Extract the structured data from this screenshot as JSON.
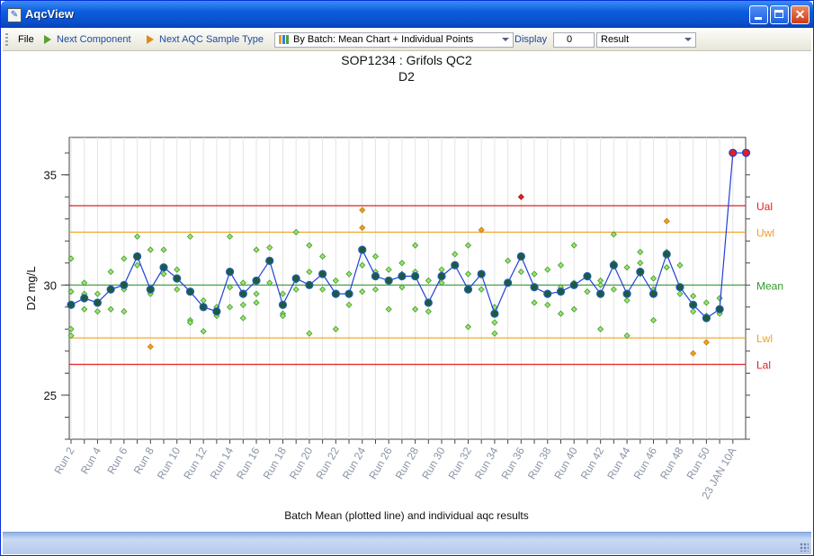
{
  "window": {
    "title": "AqcView"
  },
  "toolbar": {
    "file": "File",
    "next_component": "Next Component",
    "next_sample_type": "Next AQC Sample Type",
    "view_mode": "By Batch: Mean Chart + Individual Points",
    "display_label": "Display",
    "display_value": "0",
    "result_select": "Result"
  },
  "colors": {
    "control_limit": "#e02020",
    "warning_limit": "#f0a020",
    "mean_line": "#2e9a2e",
    "batch_mean_line": "#1f3fd9",
    "batch_mean_marker": "#1f5a40",
    "individual_point": "#9fe070",
    "outlier_warning": "#f0a020",
    "outlier_control": "#e02020",
    "latest_point": "#e02020"
  },
  "chart_data": {
    "type": "line",
    "title": "SOP1234 : Grifols QC2",
    "subtitle": "D2",
    "xlabel": "Batch Mean (plotted line) and individual aqc results",
    "ylabel": "D2 mg/L",
    "ylim": [
      23,
      36.7
    ],
    "yticks": [
      25,
      30,
      35
    ],
    "grid": true,
    "limits": [
      {
        "label": "Ual",
        "value": 33.6,
        "kind": "control"
      },
      {
        "label": "Uwl",
        "value": 32.4,
        "kind": "warning"
      },
      {
        "label": "Mean",
        "value": 30.0,
        "kind": "mean"
      },
      {
        "label": "Lwl",
        "value": 27.6,
        "kind": "warning"
      },
      {
        "label": "Lal",
        "value": 26.4,
        "kind": "control"
      }
    ],
    "categories": [
      "Run 2",
      "Run 4",
      "Run 6",
      "Run 8",
      "Run 10",
      "Run 12",
      "Run 14",
      "Run 16",
      "Run 18",
      "Run 20",
      "Run 22",
      "Run 24",
      "Run 26",
      "Run 28",
      "Run 30",
      "Run 32",
      "Run 34",
      "Run 36",
      "Run 38",
      "Run 40",
      "Run 42",
      "Run 44",
      "Run 46",
      "Run 48",
      "Run 50",
      "23 JAN 10A"
    ],
    "batch_means": [
      29.1,
      29.4,
      29.2,
      29.8,
      30.0,
      31.3,
      29.8,
      30.8,
      30.3,
      29.7,
      29.0,
      28.8,
      30.6,
      29.6,
      30.2,
      31.1,
      29.1,
      30.3,
      30.0,
      30.5,
      29.6,
      29.6,
      31.6,
      30.4,
      30.2,
      30.4,
      30.4,
      29.2,
      30.4,
      30.9,
      29.8,
      30.5,
      28.7,
      30.1,
      31.3,
      29.9,
      29.6,
      29.7,
      30.0,
      30.4,
      29.6,
      30.9,
      29.6,
      30.6,
      29.6,
      31.4,
      29.9,
      29.1,
      28.5,
      28.9,
      36.0,
      36.0
    ],
    "individual_points": [
      [
        0,
        31.2
      ],
      [
        0,
        28.0
      ],
      [
        0,
        27.7
      ],
      [
        0,
        29.7
      ],
      [
        1,
        30.1
      ],
      [
        1,
        28.9
      ],
      [
        1,
        29.6
      ],
      [
        2,
        28.8
      ],
      [
        2,
        29.6
      ],
      [
        3,
        30.6
      ],
      [
        3,
        28.9
      ],
      [
        4,
        31.2
      ],
      [
        4,
        29.8
      ],
      [
        4,
        28.8
      ],
      [
        5,
        32.2
      ],
      [
        5,
        30.9
      ],
      [
        6,
        31.6
      ],
      [
        6,
        29.6
      ],
      [
        6,
        27.2
      ],
      [
        7,
        31.6
      ],
      [
        7,
        30.5
      ],
      [
        8,
        30.7
      ],
      [
        8,
        29.8
      ],
      [
        9,
        32.2
      ],
      [
        9,
        28.4
      ],
      [
        9,
        28.3
      ],
      [
        10,
        27.9
      ],
      [
        10,
        29.3
      ],
      [
        11,
        29.0
      ],
      [
        11,
        28.6
      ],
      [
        12,
        32.2
      ],
      [
        12,
        29.9
      ],
      [
        12,
        29.0
      ],
      [
        13,
        30.1
      ],
      [
        13,
        29.1
      ],
      [
        13,
        28.5
      ],
      [
        14,
        31.6
      ],
      [
        14,
        29.6
      ],
      [
        14,
        29.2
      ],
      [
        15,
        31.7
      ],
      [
        15,
        30.1
      ],
      [
        16,
        28.7
      ],
      [
        16,
        28.6
      ],
      [
        16,
        29.6
      ],
      [
        17,
        32.4
      ],
      [
        17,
        30.2
      ],
      [
        17,
        29.8
      ],
      [
        18,
        31.8
      ],
      [
        18,
        27.8
      ],
      [
        18,
        30.6
      ],
      [
        19,
        31.3
      ],
      [
        19,
        29.8
      ],
      [
        20,
        30.2
      ],
      [
        20,
        28.0
      ],
      [
        20,
        29.6
      ],
      [
        21,
        30.5
      ],
      [
        21,
        29.1
      ],
      [
        21,
        29.6
      ],
      [
        22,
        33.4
      ],
      [
        22,
        32.6
      ],
      [
        22,
        30.9
      ],
      [
        22,
        29.7
      ],
      [
        23,
        31.3
      ],
      [
        23,
        30.6
      ],
      [
        23,
        29.8
      ],
      [
        24,
        30.7
      ],
      [
        24,
        28.9
      ],
      [
        24,
        30.2
      ],
      [
        25,
        31.0
      ],
      [
        25,
        30.5
      ],
      [
        25,
        29.9
      ],
      [
        26,
        31.8
      ],
      [
        26,
        30.6
      ],
      [
        26,
        28.9
      ],
      [
        27,
        29.2
      ],
      [
        27,
        28.8
      ],
      [
        27,
        30.2
      ],
      [
        28,
        30.7
      ],
      [
        28,
        30.5
      ],
      [
        28,
        30.1
      ],
      [
        29,
        31.4
      ],
      [
        29,
        30.9
      ],
      [
        30,
        31.8
      ],
      [
        30,
        28.1
      ],
      [
        30,
        30.5
      ],
      [
        31,
        32.5
      ],
      [
        31,
        29.8
      ],
      [
        32,
        29.0
      ],
      [
        32,
        28.3
      ],
      [
        32,
        27.8
      ],
      [
        33,
        30.1
      ],
      [
        33,
        31.1
      ],
      [
        34,
        34.0
      ],
      [
        34,
        30.6
      ],
      [
        35,
        30.5
      ],
      [
        35,
        29.2
      ],
      [
        36,
        30.7
      ],
      [
        36,
        29.1
      ],
      [
        37,
        30.9
      ],
      [
        37,
        28.7
      ],
      [
        37,
        29.9
      ],
      [
        38,
        31.8
      ],
      [
        38,
        28.9
      ],
      [
        38,
        30.1
      ],
      [
        39,
        30.4
      ],
      [
        39,
        29.7
      ],
      [
        40,
        30.2
      ],
      [
        40,
        28.0
      ],
      [
        40,
        30.0
      ],
      [
        41,
        32.3
      ],
      [
        41,
        31.0
      ],
      [
        41,
        29.8
      ],
      [
        42,
        29.3
      ],
      [
        42,
        27.7
      ],
      [
        42,
        30.8
      ],
      [
        43,
        31.5
      ],
      [
        43,
        31.0
      ],
      [
        43,
        30.5
      ],
      [
        44,
        28.4
      ],
      [
        44,
        30.3
      ],
      [
        44,
        29.8
      ],
      [
        45,
        32.9
      ],
      [
        45,
        31.5
      ],
      [
        45,
        30.8
      ],
      [
        46,
        30.9
      ],
      [
        46,
        29.6
      ],
      [
        47,
        29.5
      ],
      [
        47,
        26.9
      ],
      [
        47,
        28.8
      ],
      [
        48,
        27.4
      ],
      [
        48,
        28.6
      ],
      [
        48,
        29.2
      ],
      [
        49,
        29.4
      ],
      [
        49,
        28.7
      ]
    ],
    "latest_points": [
      [
        50,
        36.0
      ],
      [
        51,
        36.0
      ]
    ]
  }
}
